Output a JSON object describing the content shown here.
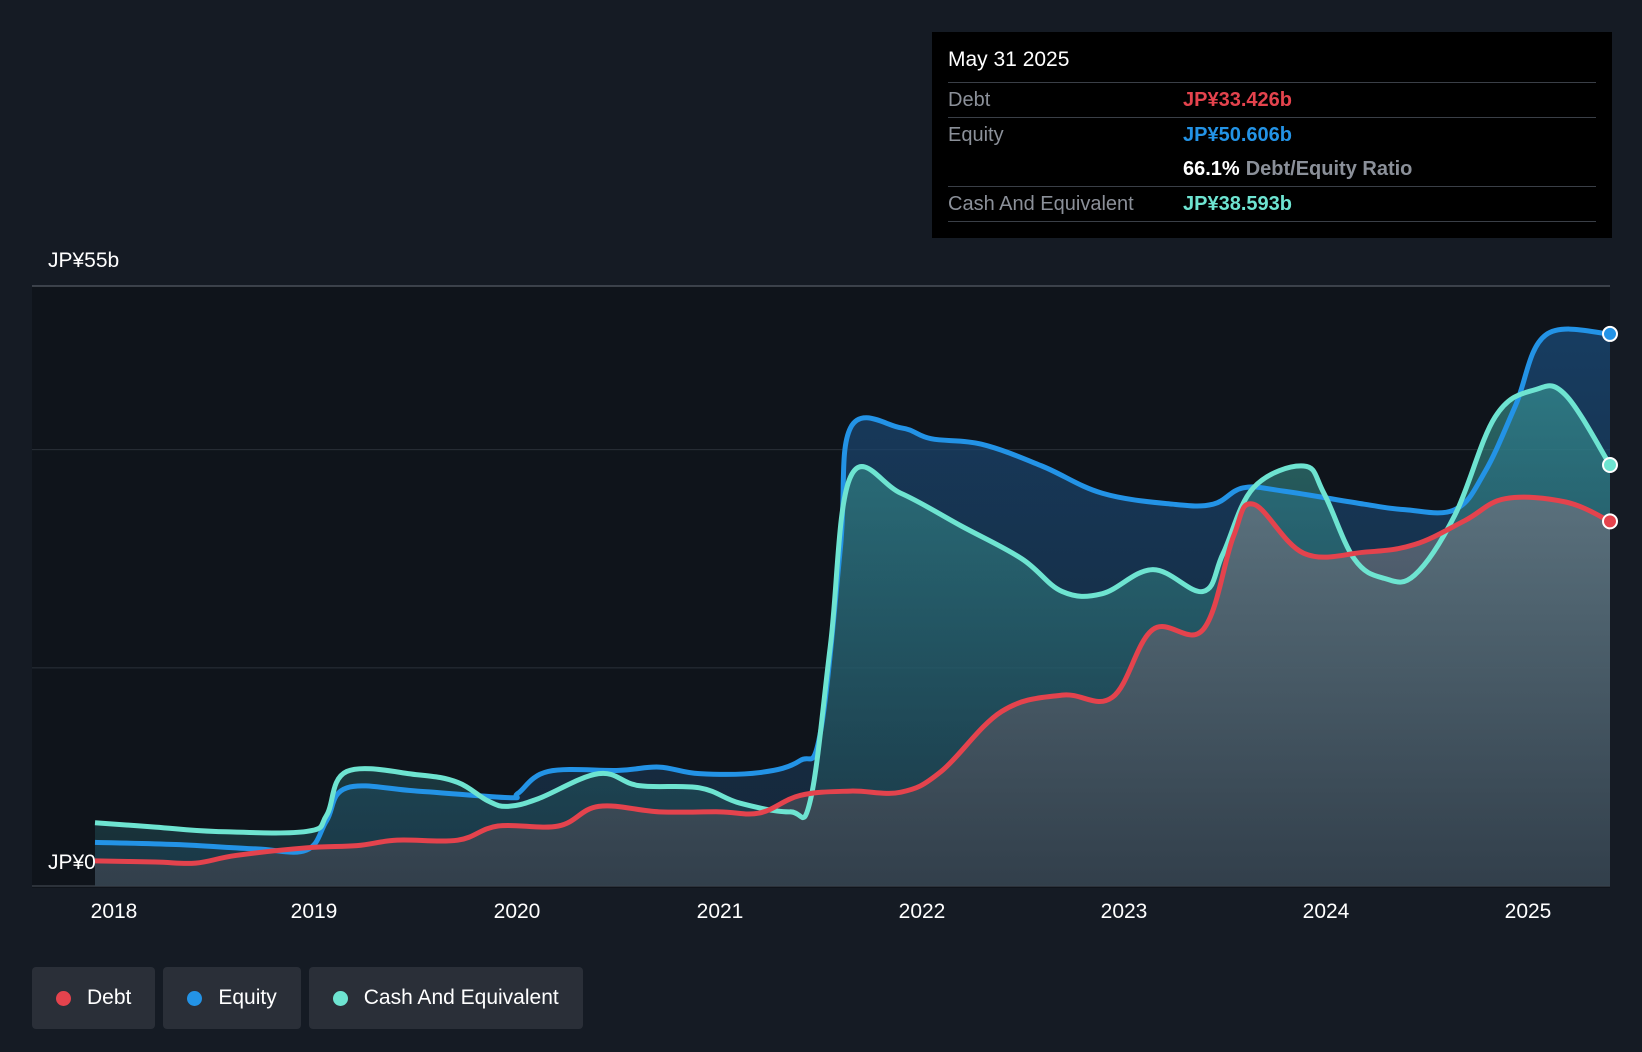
{
  "chart_data": {
    "type": "area",
    "currency": "JP¥",
    "y_axis": {
      "top_label": "JP¥55b",
      "bottom_label": "JP¥0",
      "ylim": [
        0,
        55
      ],
      "gridlines": [
        0,
        20,
        40,
        55
      ]
    },
    "x_axis": {
      "ticks": [
        "2018",
        "2019",
        "2020",
        "2021",
        "2022",
        "2023",
        "2024",
        "2025"
      ],
      "range": [
        2017.9,
        2025.42
      ]
    },
    "series": [
      {
        "name": "Equity",
        "color": "#2393e6",
        "points": [
          [
            2017.9,
            4.0
          ],
          [
            2018.3,
            3.8
          ],
          [
            2018.7,
            3.4
          ],
          [
            2018.95,
            3.3
          ],
          [
            2019.05,
            6.0
          ],
          [
            2019.15,
            9.0
          ],
          [
            2019.5,
            8.7
          ],
          [
            2019.95,
            8.1
          ],
          [
            2020.0,
            8.5
          ],
          [
            2020.15,
            10.5
          ],
          [
            2020.5,
            10.6
          ],
          [
            2020.7,
            10.9
          ],
          [
            2020.9,
            10.3
          ],
          [
            2021.2,
            10.4
          ],
          [
            2021.4,
            11.5
          ],
          [
            2021.5,
            14.0
          ],
          [
            2021.6,
            31.0
          ],
          [
            2021.65,
            42.0
          ],
          [
            2021.9,
            42.0
          ],
          [
            2022.05,
            41.0
          ],
          [
            2022.3,
            40.5
          ],
          [
            2022.6,
            38.5
          ],
          [
            2022.9,
            36.0
          ],
          [
            2023.25,
            35.0
          ],
          [
            2023.45,
            35.0
          ],
          [
            2023.6,
            36.5
          ],
          [
            2023.8,
            36.2
          ],
          [
            2024.2,
            35.0
          ],
          [
            2024.4,
            34.5
          ],
          [
            2024.65,
            34.5
          ],
          [
            2024.8,
            38.0
          ],
          [
            2024.95,
            44.0
          ],
          [
            2025.1,
            50.5
          ],
          [
            2025.42,
            50.606
          ]
        ]
      },
      {
        "name": "Cash And Equivalent",
        "color": "#6ee4d1",
        "points": [
          [
            2017.9,
            5.8
          ],
          [
            2018.2,
            5.4
          ],
          [
            2018.5,
            5.0
          ],
          [
            2018.95,
            5.0
          ],
          [
            2019.05,
            6.5
          ],
          [
            2019.15,
            10.5
          ],
          [
            2019.5,
            10.2
          ],
          [
            2019.7,
            9.5
          ],
          [
            2019.85,
            7.8
          ],
          [
            2019.95,
            7.3
          ],
          [
            2020.1,
            8.0
          ],
          [
            2020.4,
            10.3
          ],
          [
            2020.6,
            9.2
          ],
          [
            2020.9,
            9.0
          ],
          [
            2021.1,
            7.6
          ],
          [
            2021.35,
            6.8
          ],
          [
            2021.45,
            7.8
          ],
          [
            2021.55,
            22.0
          ],
          [
            2021.65,
            37.5
          ],
          [
            2021.9,
            36.0
          ],
          [
            2022.2,
            33.0
          ],
          [
            2022.5,
            30.0
          ],
          [
            2022.7,
            27.0
          ],
          [
            2022.9,
            26.8
          ],
          [
            2023.15,
            29.0
          ],
          [
            2023.4,
            27.0
          ],
          [
            2023.5,
            30.5
          ],
          [
            2023.65,
            36.5
          ],
          [
            2023.9,
            38.5
          ],
          [
            2024.0,
            36.0
          ],
          [
            2024.15,
            30.0
          ],
          [
            2024.3,
            28.2
          ],
          [
            2024.45,
            28.5
          ],
          [
            2024.65,
            34.0
          ],
          [
            2024.85,
            43.0
          ],
          [
            2025.05,
            45.5
          ],
          [
            2025.2,
            45.0
          ],
          [
            2025.42,
            38.593
          ]
        ]
      },
      {
        "name": "Debt",
        "color": "#e4434d",
        "points": [
          [
            2017.9,
            2.3
          ],
          [
            2018.2,
            2.2
          ],
          [
            2018.4,
            2.1
          ],
          [
            2018.6,
            2.8
          ],
          [
            2018.95,
            3.5
          ],
          [
            2019.2,
            3.7
          ],
          [
            2019.4,
            4.2
          ],
          [
            2019.7,
            4.2
          ],
          [
            2019.9,
            5.5
          ],
          [
            2020.2,
            5.5
          ],
          [
            2020.4,
            7.3
          ],
          [
            2020.7,
            6.8
          ],
          [
            2021.0,
            6.8
          ],
          [
            2021.2,
            6.7
          ],
          [
            2021.4,
            8.3
          ],
          [
            2021.65,
            8.7
          ],
          [
            2021.9,
            8.6
          ],
          [
            2022.1,
            10.5
          ],
          [
            2022.4,
            16.0
          ],
          [
            2022.7,
            17.5
          ],
          [
            2022.95,
            17.3
          ],
          [
            2023.15,
            23.5
          ],
          [
            2023.4,
            23.5
          ],
          [
            2023.55,
            32.0
          ],
          [
            2023.65,
            35.0
          ],
          [
            2023.9,
            30.5
          ],
          [
            2024.2,
            30.6
          ],
          [
            2024.45,
            31.3
          ],
          [
            2024.7,
            33.5
          ],
          [
            2024.9,
            35.5
          ],
          [
            2025.2,
            35.2
          ],
          [
            2025.42,
            33.426
          ]
        ]
      }
    ]
  },
  "tooltip": {
    "date": "May 31 2025",
    "debt_label": "Debt",
    "debt_value": "JP¥33.426b",
    "equity_label": "Equity",
    "equity_value": "JP¥50.606b",
    "ratio_value": "66.1%",
    "ratio_label": "Debt/Equity Ratio",
    "cash_label": "Cash And Equivalent",
    "cash_value": "JP¥38.593b"
  },
  "legend": [
    {
      "label": "Debt",
      "color": "#e4434d"
    },
    {
      "label": "Equity",
      "color": "#2393e6"
    },
    {
      "label": "Cash And Equivalent",
      "color": "#6ee4d1"
    }
  ]
}
